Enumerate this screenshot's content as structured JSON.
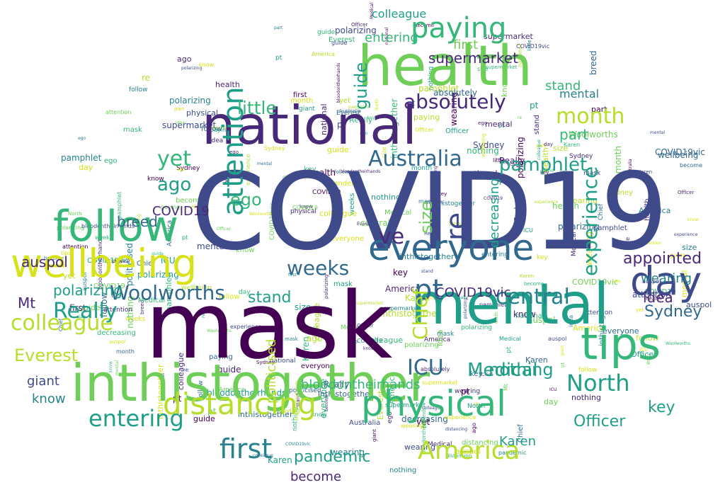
{
  "palette": {
    "dark_purple": "#440154",
    "purple": "#482878",
    "indigo": "#3e4a89",
    "blue": "#31688e",
    "teal_blue": "#26828e",
    "teal": "#1f9e89",
    "sea_green": "#35b779",
    "green": "#6ece58",
    "lime": "#b5de2b",
    "yellow": "#d8e219"
  },
  "words": {
    "covid19": "COVID19",
    "mask": "mask",
    "health": "health",
    "national": "national",
    "mental": "mental",
    "inthistogether": "inthistogether",
    "wellbeing": "wellbeing",
    "follow": "follow",
    "everyone": "everyone",
    "tips": "tips",
    "day": "day",
    "physical": "physical",
    "distancing": "distancing",
    "paying": "paying",
    "attention": "attention",
    "australia": "Australia",
    "absolutely": "absolutely",
    "north": "North",
    "america": "America",
    "colleague": "colleague",
    "really": "Really",
    "woolworths": "Woolworths",
    "central": "central",
    "experience": "experience",
    "pt": "pt",
    "first": "first",
    "entering": "entering",
    "yet": "yet",
    "month": "month",
    "pamphlet": "pamphlet",
    "weeks": "weeks",
    "sydney": "Sydney",
    "appointed": "appointed",
    "icu": "ICU",
    "medical": "Medical",
    "officer": "Officer",
    "chief": "Chief",
    "supermarket": "supermarket",
    "little": "little",
    "ago": "ago",
    "pandemic": "pandemic",
    "nothing": "nothing",
    "stand": "stand",
    "polarizing": "polarizing",
    "everest": "Everest",
    "auspol": "auspol",
    "karen": "Karen",
    "bloodontheirhands": "bloodontheirhands",
    "mt": "Mt",
    "decreasing": "decreasing",
    "re": "re",
    "size": "size",
    "giant": "giant",
    "know": "know",
    "ego": "ego",
    "breed": "breed",
    "idea": "idea",
    "key": "key",
    "part": "part",
    "wearing": "wearing",
    "guide": "guide",
    "become": "become",
    "politicised": "politicised",
    "covid19vic": "COVID19vic",
    "ve": "ve"
  }
}
